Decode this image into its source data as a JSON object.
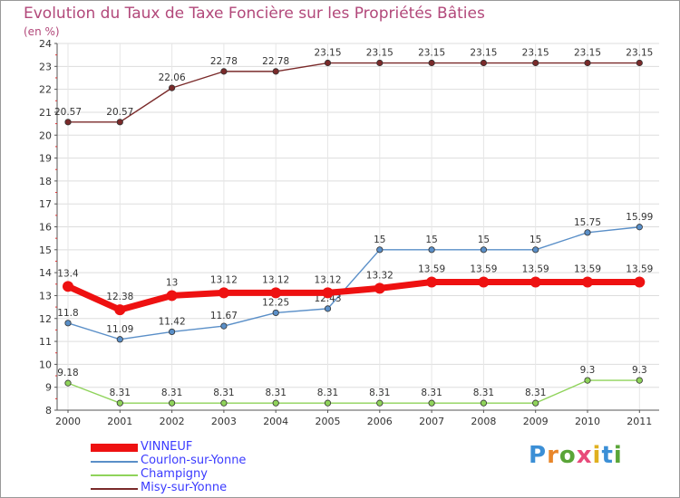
{
  "page": {
    "title": "Evolution du Taux de Taxe Foncière sur les Propriétés Bâties",
    "unit": "(en %)"
  },
  "brand": {
    "letters": [
      "P",
      "r",
      "o",
      "x",
      "i",
      "t",
      "i"
    ],
    "colors": [
      "#3b8fd6",
      "#e8862a",
      "#5aa538",
      "#e84a7a",
      "#e0b020",
      "#3b8fd6",
      "#5aa538"
    ]
  },
  "chart_data": {
    "type": "line",
    "title": "Evolution du Taux de Taxe Foncière sur les Propriétés Bâties",
    "ylabel": "(en %)",
    "xlabel": "",
    "x": [
      "2000",
      "2001",
      "2002",
      "2003",
      "2004",
      "2005",
      "2006",
      "2007",
      "2008",
      "2009",
      "2010",
      "2011"
    ],
    "ylim": [
      8,
      24
    ],
    "yticks": [
      8,
      9,
      10,
      11,
      12,
      13,
      14,
      15,
      16,
      17,
      18,
      19,
      20,
      21,
      22,
      23,
      24
    ],
    "legend": "bottom-left",
    "series": [
      {
        "name": "Misy-sur-Yonne",
        "color": "#7a2a2a",
        "values": [
          20.57,
          20.57,
          22.06,
          22.78,
          22.78,
          23.15,
          23.15,
          23.15,
          23.15,
          23.15,
          23.15,
          23.15
        ],
        "labels": [
          "20.57",
          "20.57",
          "22.06",
          "22.78",
          "22.78",
          "23.15",
          "23.15",
          "23.15",
          "23.15",
          "23.15",
          "23.15",
          "23.15"
        ]
      },
      {
        "name": "Courlon-sur-Yonne",
        "color": "#5a8fc8",
        "values": [
          11.8,
          11.09,
          11.42,
          11.67,
          12.25,
          12.43,
          15,
          15,
          15,
          15,
          15.75,
          15.99
        ],
        "labels": [
          "11.8",
          "11.09",
          "11.42",
          "11.67",
          "12.25",
          "12.43",
          "15",
          "15",
          "15",
          "15",
          "15.75",
          "15.99"
        ]
      },
      {
        "name": "Champigny",
        "color": "#8fd35a",
        "values": [
          9.18,
          8.31,
          8.31,
          8.31,
          8.31,
          8.31,
          8.31,
          8.31,
          8.31,
          8.31,
          9.3,
          9.3
        ],
        "labels": [
          "9.18",
          "8.31",
          "8.31",
          "8.31",
          "8.31",
          "8.31",
          "8.31",
          "8.31",
          "8.31",
          "8.31",
          "9.3",
          "9.3"
        ]
      },
      {
        "name": "VINNEUF",
        "color": "#ee1111",
        "values": [
          13.4,
          12.38,
          13,
          13.12,
          13.12,
          13.12,
          13.32,
          13.59,
          13.59,
          13.59,
          13.59,
          13.59
        ],
        "labels": [
          "13.4",
          "12.38",
          "13",
          "13.12",
          "13.12",
          "13.12",
          "13.32",
          "13.59",
          "13.59",
          "13.59",
          "13.59",
          "13.59"
        ]
      }
    ],
    "legend_order": [
      "VINNEUF",
      "Courlon-sur-Yonne",
      "Champigny",
      "Misy-sur-Yonne"
    ]
  }
}
